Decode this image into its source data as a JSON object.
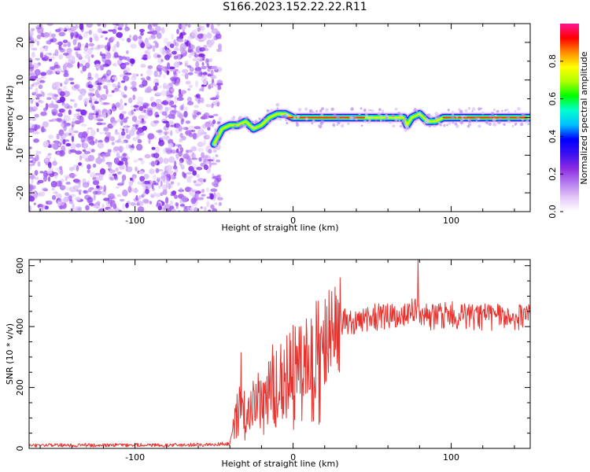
{
  "title": "S166.2023.152.22.22.R11",
  "chart_data": [
    {
      "type": "heatmap",
      "xlabel": "Height of straight line (km)",
      "ylabel": "Frequency (Hz)",
      "xlim": [
        -167,
        150
      ],
      "ylim": [
        -25,
        25
      ],
      "xticks": [
        -100,
        0,
        100
      ],
      "yticks": [
        -20,
        -10,
        0,
        10,
        20
      ],
      "grid": false,
      "noise_region_x": [
        -167,
        -50
      ],
      "ridge": {
        "x": [
          -50,
          -45,
          -40,
          -35,
          -30,
          -25,
          -20,
          -15,
          -10,
          -5,
          0,
          20,
          40,
          60,
          70,
          72,
          75,
          80,
          85,
          90,
          95,
          100,
          120,
          150
        ],
        "y": [
          -7,
          -3,
          -2,
          -2,
          -1,
          -3,
          -2,
          0,
          1,
          1,
          0,
          0,
          0,
          0,
          0,
          -2,
          0,
          1,
          -1,
          -1,
          0,
          0,
          0,
          0
        ]
      },
      "colorbar": {
        "label": "Normalized spectral amplitude",
        "ticks": [
          0.0,
          0.2,
          0.4,
          0.6,
          0.8
        ],
        "range": [
          0,
          1
        ],
        "colormap": [
          "#ffffff",
          "#e2c6f7",
          "#b57aef",
          "#8a2be2",
          "#3a10f0",
          "#0000ff",
          "#00bfff",
          "#00ffd0",
          "#00ff00",
          "#b0ff00",
          "#ffff00",
          "#ff8c00",
          "#ff0000",
          "#ff1493"
        ]
      }
    },
    {
      "type": "line",
      "xlabel": "Height of straight line (km)",
      "ylabel": "SNR (10 * v/v)",
      "xlim": [
        -167,
        150
      ],
      "ylim": [
        0,
        620
      ],
      "xticks": [
        -100,
        0,
        100
      ],
      "yticks": [
        0,
        200,
        400,
        600
      ],
      "grid": false,
      "line_color": "#e8322e",
      "x": [
        -167,
        -140,
        -120,
        -100,
        -80,
        -60,
        -50,
        -45,
        -40,
        -35,
        -30,
        -25,
        -20,
        -15,
        -10,
        -5,
        0,
        10,
        20,
        30,
        40,
        50,
        60,
        70,
        75,
        80,
        85,
        90,
        100,
        110,
        120,
        130,
        140,
        150
      ],
      "y": [
        10,
        10,
        11,
        11,
        10,
        12,
        12,
        15,
        15,
        150,
        130,
        160,
        180,
        200,
        230,
        260,
        280,
        330,
        380,
        410,
        420,
        430,
        430,
        440,
        450,
        450,
        430,
        430,
        440,
        430,
        430,
        430,
        430,
        430
      ],
      "peaks": [
        {
          "x": 79,
          "y": 618
        },
        {
          "x": -33,
          "y": 315
        },
        {
          "x": -13,
          "y": 340
        }
      ]
    }
  ]
}
